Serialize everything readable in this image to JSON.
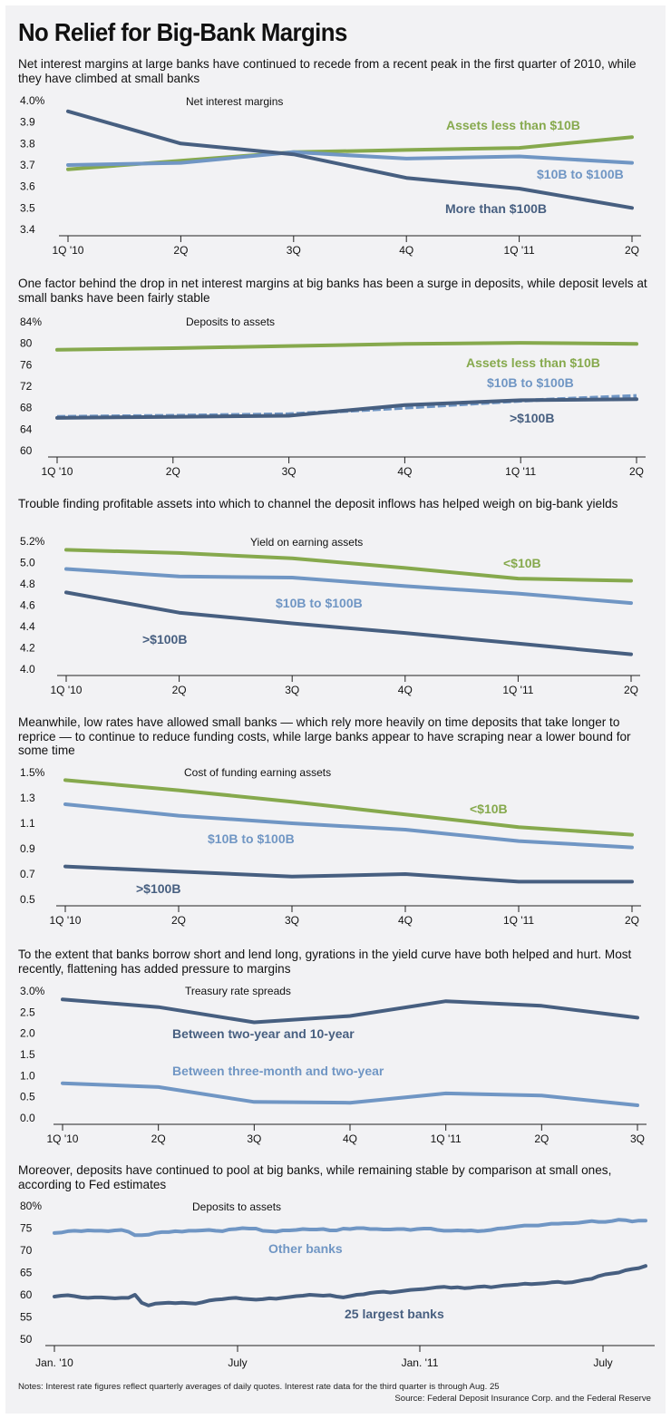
{
  "title": "No Relief for Big-Bank Margins",
  "colors": {
    "green": "#86a94d",
    "light_blue": "#7096c4",
    "dark_blue": "#475f80",
    "axis": "#222222",
    "background": "#f2f2f4"
  },
  "chart_data": [
    {
      "type": "line",
      "subtitle": "Net interest margins at large banks have continued to recede from a recent peak in the first quarter of 2010, while they have climbed at small banks",
      "title": "Net interest margins",
      "categories": [
        "1Q '10",
        "2Q",
        "3Q",
        "4Q",
        "1Q '11",
        "2Q"
      ],
      "ylim": [
        3.4,
        4.0
      ],
      "yticks": [
        "4.0%",
        "3.9",
        "3.8",
        "3.7",
        "3.6",
        "3.5",
        "3.4"
      ],
      "series": [
        {
          "name": "Assets less than $10B",
          "values": [
            3.68,
            3.72,
            3.76,
            3.77,
            3.78,
            3.83
          ],
          "color": "#86a94d"
        },
        {
          "name": "$10B to $100B",
          "values": [
            3.7,
            3.71,
            3.76,
            3.73,
            3.74,
            3.71
          ],
          "color": "#7096c4"
        },
        {
          "name": "More than $100B",
          "values": [
            3.95,
            3.8,
            3.75,
            3.64,
            3.59,
            3.5
          ],
          "color": "#475f80"
        }
      ]
    },
    {
      "type": "line",
      "subtitle": "One factor behind the drop in net interest margins at big banks has been a surge in deposits, while deposit levels at small banks have been fairly stable",
      "title": "Deposits to assets",
      "categories": [
        "1Q '10",
        "2Q",
        "3Q",
        "4Q",
        "1Q '11",
        "2Q"
      ],
      "ylim": [
        60,
        84
      ],
      "yticks": [
        "84%",
        "80",
        "76",
        "72",
        "68",
        "64",
        "60"
      ],
      "series": [
        {
          "name": "Assets less than $10B",
          "values": [
            78.8,
            79.1,
            79.5,
            79.9,
            80.1,
            79.9
          ],
          "color": "#86a94d"
        },
        {
          "name": "$10B to $100B",
          "values": [
            66.3,
            66.5,
            66.8,
            68.0,
            69.3,
            70.2
          ],
          "color": "#7096c4",
          "dashed": true
        },
        {
          "name": ">$100B",
          "values": [
            66.1,
            66.3,
            66.5,
            68.5,
            69.4,
            69.6
          ],
          "color": "#475f80"
        }
      ]
    },
    {
      "type": "line",
      "subtitle": "Trouble finding profitable assets into which to channel the deposit inflows has helped weigh on big-bank yields",
      "title": "Yield on earning assets",
      "categories": [
        "1Q '10",
        "2Q",
        "3Q",
        "4Q",
        "1Q '11",
        "2Q"
      ],
      "ylim": [
        4.0,
        5.2
      ],
      "yticks": [
        "5.2%",
        "5.0",
        "4.8",
        "4.6",
        "4.4",
        "4.2",
        "4.0"
      ],
      "series": [
        {
          "name": "<$10B",
          "values": [
            5.12,
            5.09,
            5.04,
            4.95,
            4.85,
            4.83
          ],
          "color": "#86a94d"
        },
        {
          "name": "$10B to $100B",
          "values": [
            4.94,
            4.87,
            4.86,
            4.78,
            4.71,
            4.62
          ],
          "color": "#7096c4"
        },
        {
          "name": ">$100B",
          "values": [
            4.72,
            4.53,
            4.43,
            4.34,
            4.24,
            4.14
          ],
          "color": "#475f80"
        }
      ]
    },
    {
      "type": "line",
      "subtitle": "Meanwhile, low rates have allowed small banks — which rely more heavily on time deposits that take longer to reprice — to continue to reduce funding costs, while large banks appear to have scraping near a lower bound for some time",
      "title": "Cost of funding earning assets",
      "categories": [
        "1Q '10",
        "2Q",
        "3Q",
        "4Q",
        "1Q '11",
        "2Q"
      ],
      "ylim": [
        0.5,
        1.5
      ],
      "yticks": [
        "1.5%",
        "1.3",
        "1.1",
        "0.9",
        "0.7",
        "0.5"
      ],
      "series": [
        {
          "name": "<$10B",
          "values": [
            1.44,
            1.36,
            1.27,
            1.17,
            1.07,
            1.01
          ],
          "color": "#86a94d"
        },
        {
          "name": "$10B to $100B",
          "values": [
            1.25,
            1.16,
            1.1,
            1.05,
            0.96,
            0.91
          ],
          "color": "#7096c4"
        },
        {
          "name": ">$100B",
          "values": [
            0.76,
            0.72,
            0.68,
            0.7,
            0.64,
            0.64
          ],
          "color": "#475f80"
        }
      ]
    },
    {
      "type": "line",
      "subtitle": "To the extent that banks borrow short and lend long, gyrations in the yield curve have both helped and hurt. Most recently, flattening has added pressure to margins",
      "title": "Treasury rate spreads",
      "categories": [
        "1Q '10",
        "2Q",
        "3Q",
        "4Q",
        "1Q '11",
        "2Q",
        "3Q"
      ],
      "ylim": [
        0.0,
        3.0
      ],
      "yticks": [
        "3.0%",
        "2.5",
        "2.0",
        "1.5",
        "1.0",
        "0.5",
        "0.0"
      ],
      "series": [
        {
          "name": "Between two-year and 10-year",
          "values": [
            2.8,
            2.62,
            2.26,
            2.41,
            2.76,
            2.65,
            2.37
          ],
          "color": "#475f80"
        },
        {
          "name": "Between three-month and two-year",
          "values": [
            0.82,
            0.73,
            0.38,
            0.36,
            0.58,
            0.53,
            0.3
          ],
          "color": "#7096c4"
        }
      ]
    },
    {
      "type": "line",
      "subtitle": "Moreover, deposits have continued to pool at big banks, while remaining stable by comparison at small ones, according to Fed estimates",
      "title": "Deposits to assets",
      "x_range": [
        "Jan. 2010",
        "Aug. 2011"
      ],
      "xticks": [
        "Jan. '10",
        "July",
        "Jan. '11",
        "July"
      ],
      "ylim": [
        50,
        80
      ],
      "yticks": [
        "80%",
        "75",
        "70",
        "65",
        "60",
        "55",
        "50"
      ],
      "series": [
        {
          "name": "Other banks",
          "color": "#7096c4",
          "values": [
            73.9,
            74.0,
            74.3,
            74.4,
            74.3,
            74.5,
            74.4,
            74.4,
            74.3,
            74.5,
            74.6,
            74.2,
            73.4,
            73.4,
            73.5,
            73.9,
            74.1,
            74.1,
            74.3,
            74.2,
            74.4,
            74.4,
            74.5,
            74.6,
            74.4,
            74.3,
            74.7,
            74.8,
            75.0,
            74.9,
            74.9,
            74.4,
            74.3,
            74.2,
            74.5,
            74.5,
            74.6,
            74.8,
            74.7,
            74.7,
            74.8,
            74.5,
            74.5,
            74.9,
            74.8,
            75.0,
            75.0,
            74.8,
            74.8,
            74.7,
            74.7,
            74.8,
            74.8,
            74.6,
            74.8,
            74.9,
            74.9,
            74.6,
            74.4,
            74.4,
            74.5,
            74.4,
            74.5,
            74.3,
            74.4,
            74.6,
            74.9,
            75.0,
            75.2,
            75.4,
            75.6,
            75.6,
            75.6,
            75.8,
            76.0,
            76.0,
            76.1,
            76.1,
            76.2,
            76.4,
            76.6,
            76.4,
            76.4,
            76.6,
            76.9,
            76.8,
            76.5,
            76.7,
            76.7
          ]
        },
        {
          "name": "25 largest banks",
          "color": "#475f80",
          "values": [
            59.6,
            59.8,
            59.9,
            59.7,
            59.4,
            59.3,
            59.4,
            59.4,
            59.3,
            59.2,
            59.3,
            59.3,
            60.0,
            58.2,
            57.6,
            58.0,
            58.1,
            58.2,
            58.1,
            58.2,
            58.1,
            58.0,
            58.3,
            58.7,
            58.9,
            59.0,
            59.2,
            59.3,
            59.1,
            59.0,
            58.9,
            59.0,
            59.2,
            59.1,
            59.3,
            59.5,
            59.7,
            59.8,
            60.0,
            59.9,
            59.8,
            59.9,
            59.6,
            59.4,
            59.7,
            60.0,
            60.1,
            60.4,
            60.6,
            60.7,
            60.5,
            60.7,
            60.9,
            61.1,
            61.2,
            61.3,
            61.5,
            61.7,
            61.8,
            61.6,
            61.7,
            61.5,
            61.6,
            61.8,
            61.9,
            61.7,
            61.9,
            62.1,
            62.2,
            62.3,
            62.5,
            62.4,
            62.5,
            62.6,
            62.8,
            62.9,
            62.7,
            62.8,
            63.1,
            63.4,
            63.6,
            64.2,
            64.6,
            64.8,
            65.0,
            65.5,
            65.8,
            66.0,
            66.5
          ]
        }
      ]
    }
  ],
  "notes": "Notes: Interest rate figures reflect quarterly averages of daily quotes. Interest rate data for the third quarter is through Aug. 25",
  "source": "Source: Federal Deposit Insurance Corp. and the Federal Reserve"
}
